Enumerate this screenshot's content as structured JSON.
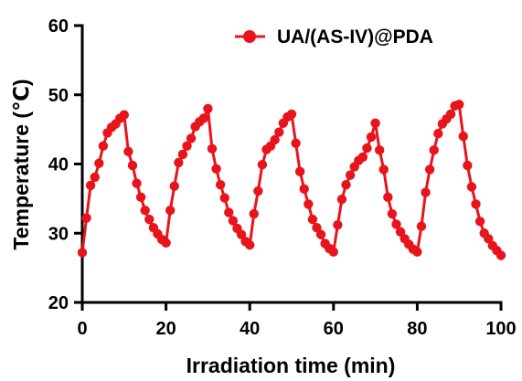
{
  "chart_data": {
    "type": "line",
    "title": "",
    "xlabel": "Irradiation time (min)",
    "ylabel": "Temperature (℃)",
    "xlim": [
      0,
      100
    ],
    "ylim": [
      20,
      60
    ],
    "x_ticks": [
      0,
      20,
      40,
      60,
      80,
      100
    ],
    "y_ticks": [
      20,
      30,
      40,
      50,
      60
    ],
    "x_tick_labels": [
      "0",
      "20",
      "40",
      "60",
      "80",
      "100"
    ],
    "y_tick_labels": [
      "20",
      "30",
      "40",
      "50",
      "60"
    ],
    "grid": false,
    "legend_position": "top-right",
    "series": [
      {
        "name": "UA/(AS-IV)@PDA",
        "color": "#e8141c",
        "marker": "circle",
        "x": [
          0,
          1,
          2,
          3,
          4,
          5,
          6,
          7,
          8,
          9,
          10,
          11,
          12,
          13,
          14,
          15,
          16,
          17,
          18,
          19,
          20,
          21,
          22,
          23,
          24,
          25,
          26,
          27,
          28,
          29,
          30,
          31,
          32,
          33,
          34,
          35,
          36,
          37,
          38,
          39,
          40,
          41,
          42,
          43,
          44,
          45,
          46,
          47,
          48,
          49,
          50,
          51,
          52,
          53,
          54,
          55,
          56,
          57,
          58,
          59,
          60,
          61,
          62,
          63,
          64,
          65,
          66,
          67,
          68,
          69,
          70,
          71,
          72,
          73,
          74,
          75,
          76,
          77,
          78,
          79,
          80,
          81,
          82,
          83,
          84,
          85,
          86,
          87,
          88,
          89,
          90,
          91,
          92,
          93,
          94,
          95,
          96,
          97,
          98,
          99,
          100
        ],
        "y": [
          27.2,
          32.2,
          36.9,
          38.1,
          40.1,
          42.6,
          44.5,
          45.3,
          45.8,
          46.6,
          47.1,
          41.8,
          39.8,
          37.2,
          35.2,
          33.3,
          32.0,
          30.8,
          29.9,
          29.1,
          28.6,
          33.3,
          36.8,
          40.2,
          41.4,
          42.6,
          43.7,
          45.4,
          46.1,
          46.6,
          48.0,
          42.2,
          39.3,
          37.0,
          35.1,
          33.0,
          31.8,
          30.7,
          29.8,
          28.8,
          28.3,
          32.8,
          36.1,
          39.9,
          42.1,
          42.6,
          43.5,
          44.6,
          45.9,
          46.8,
          47.2,
          43.0,
          38.9,
          36.4,
          34.2,
          32.0,
          30.8,
          29.8,
          28.5,
          27.8,
          27.3,
          31.2,
          34.9,
          37.0,
          38.4,
          39.6,
          40.5,
          41.0,
          42.3,
          43.9,
          45.9,
          42.0,
          39.2,
          35.2,
          32.8,
          31.3,
          30.2,
          29.2,
          28.4,
          27.7,
          27.3,
          31.0,
          35.9,
          39.2,
          42.0,
          44.4,
          45.8,
          46.5,
          47.2,
          48.4,
          48.6,
          44.0,
          39.8,
          36.7,
          34.2,
          31.7,
          30.0,
          29.2,
          28.2,
          27.5,
          26.8
        ]
      }
    ]
  }
}
